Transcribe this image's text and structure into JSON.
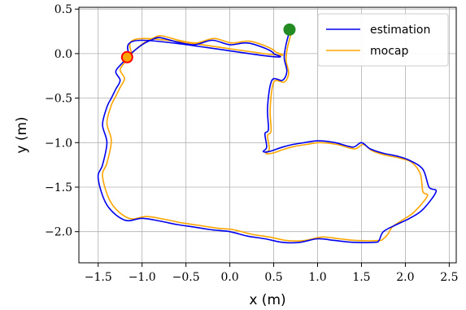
{
  "chart_data": {
    "type": "line",
    "title": "",
    "xlabel": "x (m)",
    "ylabel": "y (m)",
    "xlim": [
      -1.72,
      2.58
    ],
    "ylim": [
      -2.35,
      0.52
    ],
    "xticks": [
      -1.5,
      -1.0,
      -0.5,
      0.0,
      0.5,
      1.0,
      1.5,
      2.0,
      2.5
    ],
    "xtick_labels": [
      "−1.5",
      "−1.0",
      "−0.5",
      "0.0",
      "0.5",
      "1.0",
      "1.5",
      "2.0",
      "2.5"
    ],
    "yticks": [
      -2.0,
      -1.5,
      -1.0,
      -0.5,
      0.0,
      0.5
    ],
    "ytick_labels": [
      "−2.0",
      "−1.5",
      "−1.0",
      "−0.5",
      "0.0",
      "0.5"
    ],
    "grid": true,
    "legend_position": "top-right",
    "series": [
      {
        "name": "estimation",
        "color": "#0000ee",
        "x": [
          0.68,
          0.64,
          0.62,
          0.65,
          0.6,
          0.48,
          0.43,
          0.44,
          0.4,
          0.42,
          0.38,
          0.45,
          0.6,
          0.72,
          0.85,
          1.0,
          1.2,
          1.4,
          1.5,
          1.6,
          1.75,
          1.9,
          2.05,
          2.2,
          2.27,
          2.35,
          2.2,
          2.05,
          1.9,
          1.75,
          1.7,
          1.65,
          1.4,
          1.2,
          1.0,
          0.8,
          0.6,
          0.4,
          0.2,
          0.0,
          -0.2,
          -0.4,
          -0.6,
          -0.8,
          -1.0,
          -1.2,
          -1.4,
          -1.5,
          -1.45,
          -1.4,
          -1.45,
          -1.4,
          -1.35,
          -1.3,
          -1.25,
          -1.3,
          -1.22,
          -1.15,
          -1.0,
          -0.9,
          -0.8,
          -0.6,
          -0.4,
          -0.2,
          0.0,
          0.2,
          0.4,
          0.5,
          0.45,
          -1.0,
          -1.15
        ],
        "y": [
          0.25,
          0.1,
          -0.05,
          -0.2,
          -0.3,
          -0.3,
          -0.6,
          -0.85,
          -0.9,
          -1.05,
          -1.1,
          -1.1,
          -1.05,
          -1.02,
          -1.0,
          -0.98,
          -1.0,
          -1.05,
          -1.0,
          -1.07,
          -1.12,
          -1.15,
          -1.2,
          -1.3,
          -1.5,
          -1.55,
          -1.75,
          -1.85,
          -1.92,
          -2.0,
          -2.1,
          -2.12,
          -2.12,
          -2.1,
          -2.08,
          -2.12,
          -2.12,
          -2.08,
          -2.05,
          -2.0,
          -1.98,
          -1.95,
          -1.92,
          -1.88,
          -1.85,
          -1.87,
          -1.7,
          -1.4,
          -1.25,
          -1.0,
          -0.8,
          -0.6,
          -0.5,
          -0.4,
          -0.3,
          -0.2,
          -0.1,
          -0.02,
          0.1,
          0.15,
          0.18,
          0.13,
          0.1,
          0.15,
          0.1,
          0.12,
          0.06,
          0.0,
          -0.03,
          0.15,
          -0.03
        ]
      },
      {
        "name": "mocap",
        "color": "#ffa500",
        "x": [
          0.7,
          0.66,
          0.64,
          0.67,
          0.62,
          0.5,
          0.46,
          0.47,
          0.43,
          0.45,
          0.41,
          0.48,
          0.63,
          0.75,
          0.88,
          1.02,
          1.22,
          1.42,
          1.52,
          1.62,
          1.77,
          1.92,
          2.07,
          2.17,
          2.2,
          2.25,
          2.1,
          1.95,
          1.85,
          1.8,
          1.75,
          1.7,
          1.45,
          1.25,
          1.05,
          0.85,
          0.65,
          0.45,
          0.25,
          0.05,
          -0.15,
          -0.35,
          -0.55,
          -0.75,
          -0.95,
          -1.15,
          -1.35,
          -1.45,
          -1.4,
          -1.35,
          -1.4,
          -1.35,
          -1.3,
          -1.25,
          -1.2,
          -1.25,
          -1.18,
          -1.12,
          -0.98,
          -0.88,
          -0.78,
          -0.58,
          -0.38,
          -0.18,
          0.02,
          0.22,
          0.42,
          0.52,
          0.48,
          -0.98,
          -1.12
        ],
        "y": [
          0.23,
          0.08,
          -0.07,
          -0.22,
          -0.32,
          -0.32,
          -0.62,
          -0.87,
          -0.92,
          -1.07,
          -1.12,
          -1.12,
          -1.07,
          -1.04,
          -1.02,
          -1.0,
          -1.02,
          -1.07,
          -1.02,
          -1.09,
          -1.14,
          -1.17,
          -1.22,
          -1.35,
          -1.55,
          -1.6,
          -1.78,
          -1.88,
          -1.95,
          -2.03,
          -2.08,
          -2.1,
          -2.1,
          -2.08,
          -2.06,
          -2.1,
          -2.1,
          -2.06,
          -2.03,
          -1.98,
          -1.96,
          -1.93,
          -1.9,
          -1.86,
          -1.83,
          -1.85,
          -1.68,
          -1.38,
          -1.23,
          -0.98,
          -0.78,
          -0.58,
          -0.48,
          -0.38,
          -0.28,
          -0.18,
          -0.08,
          0.0,
          0.12,
          0.17,
          0.2,
          0.15,
          0.12,
          0.17,
          0.12,
          0.14,
          0.08,
          0.02,
          -0.01,
          0.17,
          -0.01
        ]
      }
    ],
    "markers": [
      {
        "x": 0.68,
        "y": 0.27,
        "color": "#228b22",
        "edge": "#228b22"
      },
      {
        "x": -1.17,
        "y": -0.04,
        "color": "#ffa500",
        "edge": "#ff0000"
      }
    ]
  }
}
